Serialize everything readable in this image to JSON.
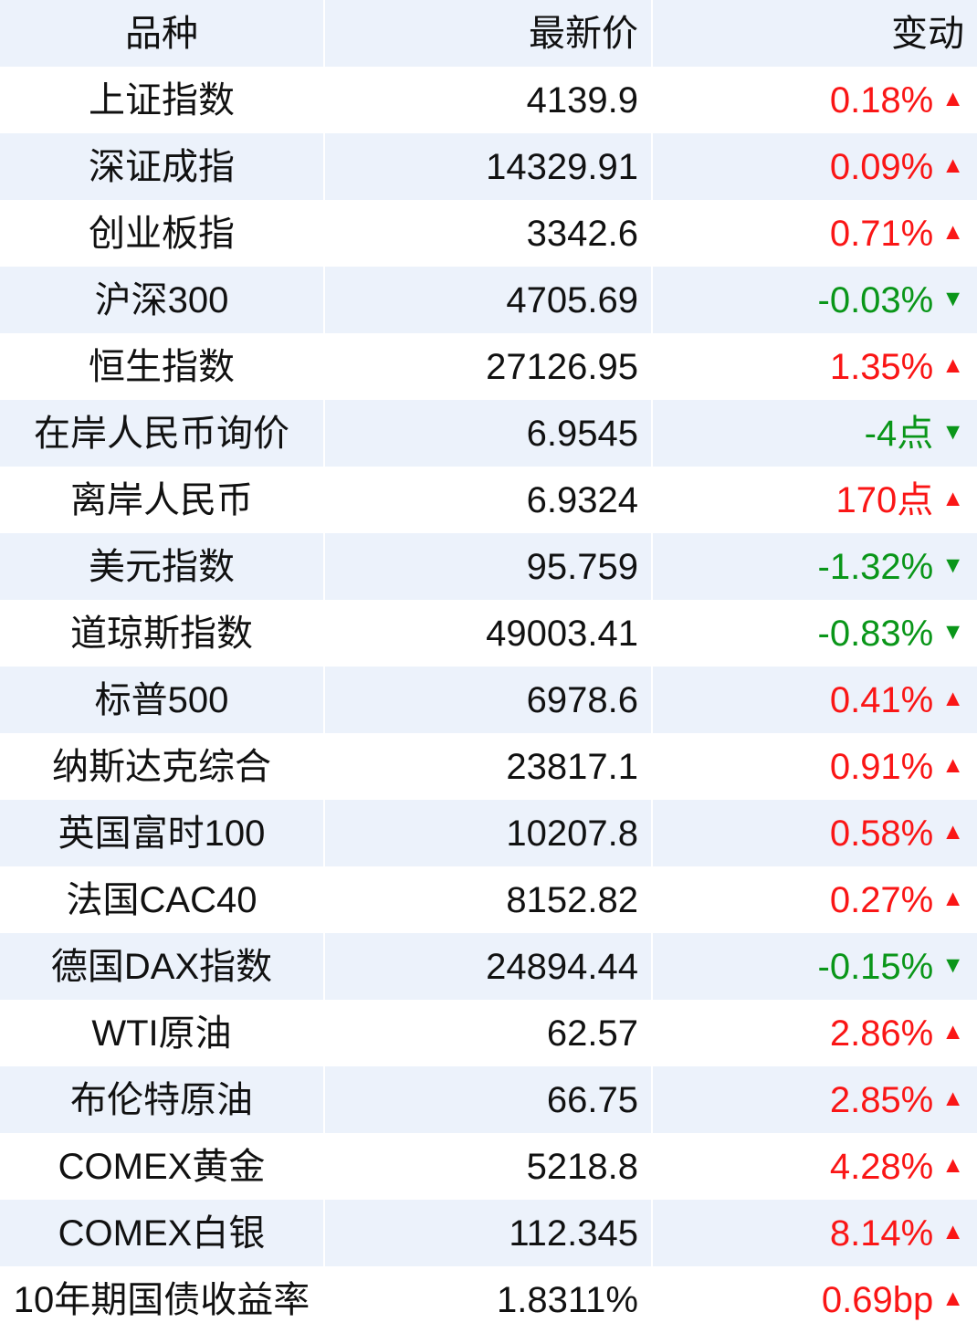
{
  "chart_data": {
    "type": "table",
    "title": "",
    "columns": [
      {
        "label": "品种"
      },
      {
        "label": "最新价"
      },
      {
        "label": "变动"
      }
    ],
    "rows": [
      {
        "name": "上证指数",
        "price": "4139.9",
        "change": "0.18%",
        "direction": "up"
      },
      {
        "name": "深证成指",
        "price": "14329.91",
        "change": "0.09%",
        "direction": "up"
      },
      {
        "name": "创业板指",
        "price": "3342.6",
        "change": "0.71%",
        "direction": "up"
      },
      {
        "name": "沪深300",
        "price": "4705.69",
        "change": "-0.03%",
        "direction": "down"
      },
      {
        "name": "恒生指数",
        "price": "27126.95",
        "change": "1.35%",
        "direction": "up"
      },
      {
        "name": "在岸人民币询价",
        "price": "6.9545",
        "change": "-4点",
        "direction": "down"
      },
      {
        "name": "离岸人民币",
        "price": "6.9324",
        "change": "170点",
        "direction": "up"
      },
      {
        "name": "美元指数",
        "price": "95.759",
        "change": "-1.32%",
        "direction": "down"
      },
      {
        "name": "道琼斯指数",
        "price": "49003.41",
        "change": "-0.83%",
        "direction": "down"
      },
      {
        "name": "标普500",
        "price": "6978.6",
        "change": "0.41%",
        "direction": "up"
      },
      {
        "name": "纳斯达克综合",
        "price": "23817.1",
        "change": "0.91%",
        "direction": "up"
      },
      {
        "name": "英国富时100",
        "price": "10207.8",
        "change": "0.58%",
        "direction": "up"
      },
      {
        "name": "法国CAC40",
        "price": "8152.82",
        "change": "0.27%",
        "direction": "up"
      },
      {
        "name": "德国DAX指数",
        "price": "24894.44",
        "change": "-0.15%",
        "direction": "down"
      },
      {
        "name": "WTI原油",
        "price": "62.57",
        "change": "2.86%",
        "direction": "up"
      },
      {
        "name": "布伦特原油",
        "price": "66.75",
        "change": "2.85%",
        "direction": "up"
      },
      {
        "name": "COMEX黄金",
        "price": "5218.8",
        "change": "4.28%",
        "direction": "up"
      },
      {
        "name": "COMEX白银",
        "price": "112.345",
        "change": "8.14%",
        "direction": "up"
      },
      {
        "name": "10年期国债收益率",
        "price": "1.8311%",
        "change": "0.69bp",
        "direction": "up"
      }
    ]
  },
  "icons": {
    "up": "▲",
    "down": "▼"
  },
  "colors": {
    "up": "#fa1616",
    "down": "#0a9619",
    "text": "#111111",
    "row_alt_bg": "#ecf2fb",
    "row_bg": "#ffffff"
  }
}
